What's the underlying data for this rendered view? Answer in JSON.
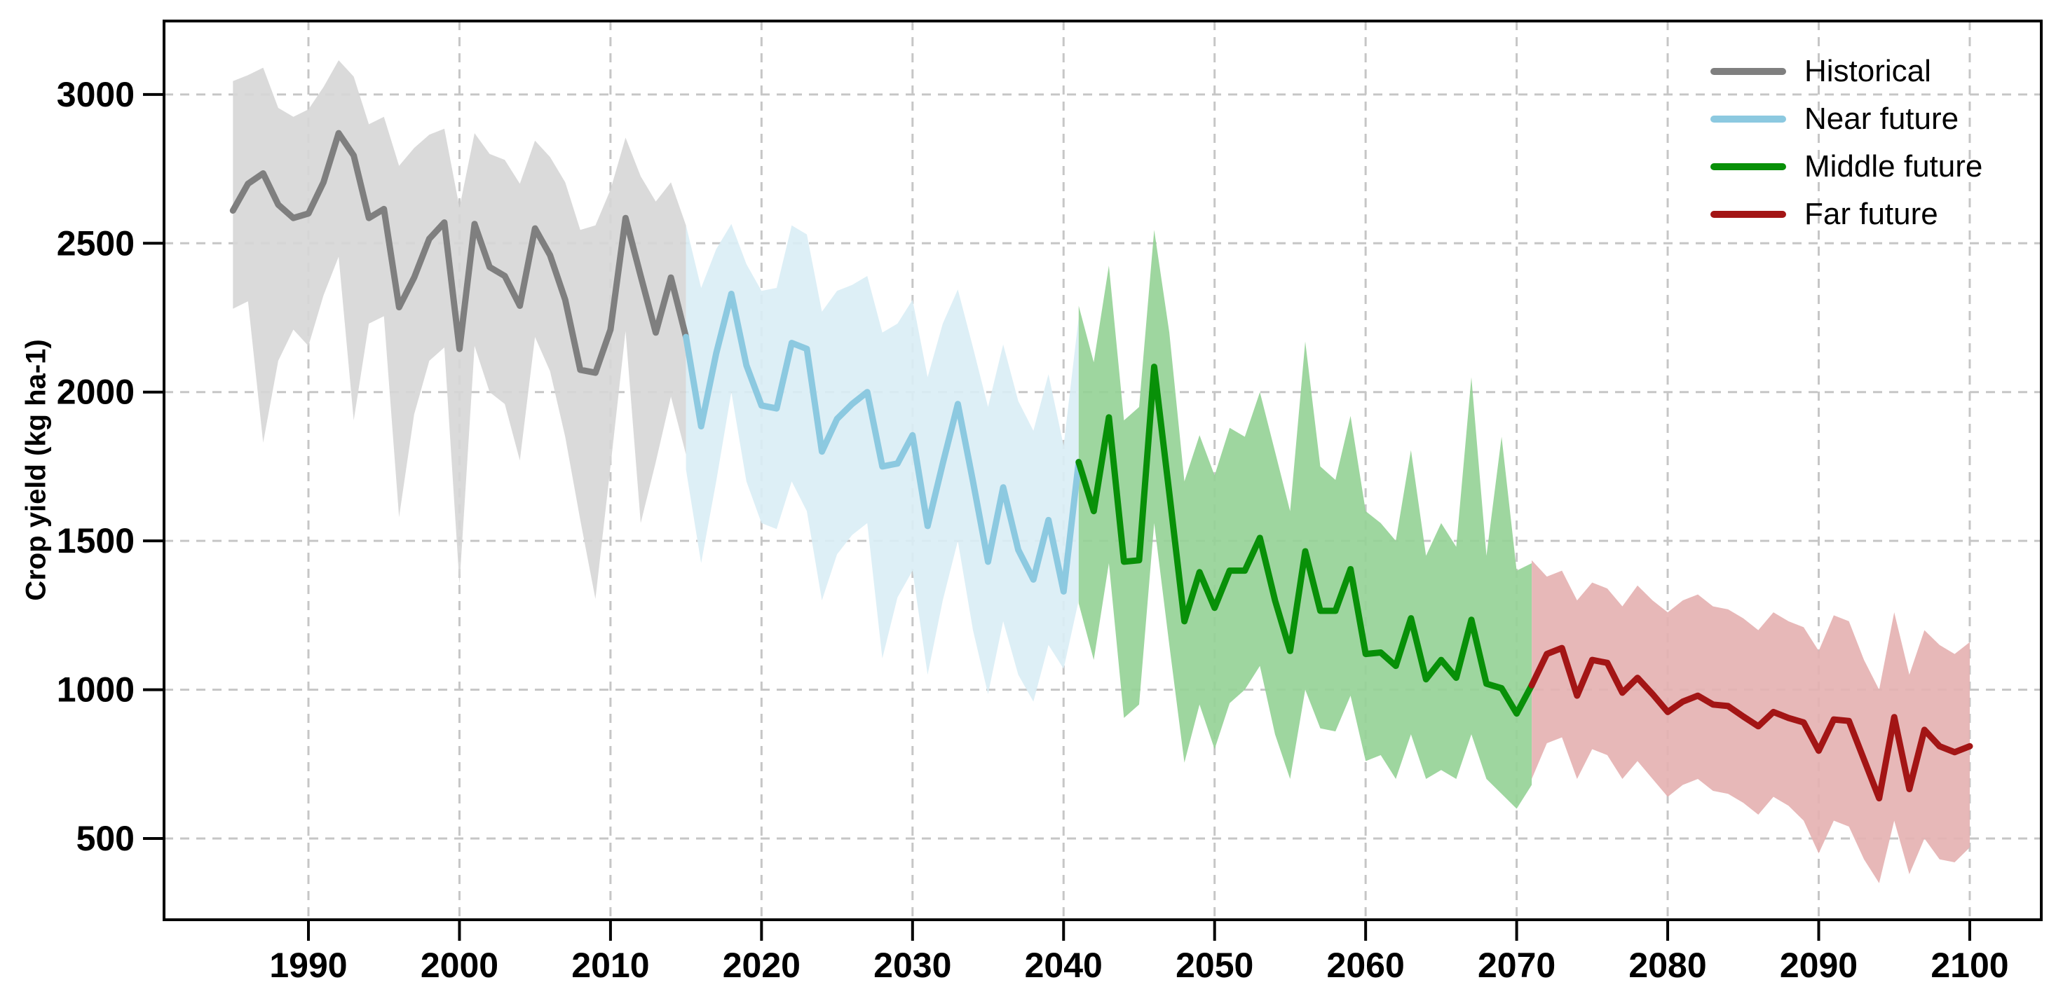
{
  "chart_data": {
    "type": "line",
    "title": "",
    "xlabel": "",
    "ylabel": "Crop yield (kg ha-1)",
    "x_ticks": [
      1990,
      2000,
      2010,
      2020,
      2030,
      2040,
      2050,
      2060,
      2070,
      2080,
      2090,
      2100
    ],
    "y_ticks": [
      500,
      1000,
      1500,
      2000,
      2500,
      3000
    ],
    "xlim": [
      1980.4,
      2104.7
    ],
    "ylim": [
      230,
      3250
    ],
    "grid": true,
    "grid_style": "dashed",
    "legend_position": "top-right",
    "frame_color": "#000000",
    "grid_color": "#c6c6c6",
    "series": [
      {
        "name": "Historical",
        "color": "#7f7f7f",
        "band_color": "#d6d6d6",
        "years": [
          1985,
          1986,
          1987,
          1988,
          1989,
          1990,
          1991,
          1992,
          1993,
          1994,
          1995,
          1996,
          1997,
          1998,
          1999,
          2000,
          2001,
          2002,
          2003,
          2004,
          2005,
          2006,
          2007,
          2008,
          2009,
          2010,
          2011,
          2012,
          2013,
          2014,
          2015
        ],
        "values": [
          2610,
          2700,
          2735,
          2630,
          2585,
          2600,
          2705,
          2870,
          2795,
          2585,
          2615,
          2285,
          2385,
          2515,
          2570,
          2145,
          2565,
          2420,
          2390,
          2290,
          2550,
          2460,
          2310,
          2075,
          2065,
          2210,
          2585,
          2390,
          2200,
          2385,
          2185
        ],
        "upper": [
          3045,
          3065,
          3090,
          2955,
          2925,
          2950,
          3025,
          3115,
          3060,
          2900,
          2925,
          2760,
          2820,
          2865,
          2885,
          2620,
          2870,
          2800,
          2780,
          2700,
          2845,
          2790,
          2705,
          2545,
          2560,
          2680,
          2855,
          2725,
          2640,
          2705,
          2560
        ],
        "lower": [
          2280,
          2305,
          1830,
          2105,
          2210,
          2155,
          2325,
          2455,
          1905,
          2230,
          2255,
          1580,
          1925,
          2105,
          2150,
          1355,
          2155,
          2000,
          1960,
          1770,
          2185,
          2070,
          1850,
          1570,
          1305,
          1750,
          2205,
          1560,
          1765,
          1985,
          1790
        ]
      },
      {
        "name": "Near future",
        "color": "#8cc9e0",
        "band_color": "#d9edf5",
        "years": [
          2015,
          2016,
          2017,
          2018,
          2019,
          2020,
          2021,
          2022,
          2023,
          2024,
          2025,
          2026,
          2027,
          2028,
          2029,
          2030,
          2031,
          2032,
          2033,
          2034,
          2035,
          2036,
          2037,
          2038,
          2039,
          2040,
          2041
        ],
        "values": [
          2185,
          1885,
          2130,
          2330,
          2090,
          1955,
          1945,
          2165,
          2145,
          1800,
          1910,
          1960,
          2000,
          1750,
          1760,
          1855,
          1550,
          1760,
          1960,
          1700,
          1430,
          1680,
          1470,
          1370,
          1570,
          1330,
          1765
        ],
        "upper": [
          2560,
          2350,
          2480,
          2565,
          2430,
          2340,
          2350,
          2560,
          2530,
          2270,
          2340,
          2360,
          2390,
          2200,
          2230,
          2310,
          2050,
          2230,
          2345,
          2150,
          1950,
          2160,
          1970,
          1870,
          2060,
          1820,
          2250
        ],
        "lower": [
          1740,
          1425,
          1700,
          2000,
          1700,
          1560,
          1540,
          1700,
          1600,
          1300,
          1455,
          1520,
          1560,
          1105,
          1310,
          1400,
          1050,
          1300,
          1500,
          1200,
          985,
          1230,
          1050,
          960,
          1150,
          1070,
          1300
        ]
      },
      {
        "name": "Middle future",
        "color": "#089008",
        "band_color": "#93d195",
        "years": [
          2041,
          2042,
          2043,
          2044,
          2045,
          2046,
          2047,
          2048,
          2049,
          2050,
          2051,
          2052,
          2053,
          2054,
          2055,
          2056,
          2057,
          2058,
          2059,
          2060,
          2061,
          2062,
          2063,
          2064,
          2065,
          2066,
          2067,
          2068,
          2069,
          2070,
          2071
        ],
        "values": [
          1765,
          1600,
          1915,
          1430,
          1435,
          2085,
          1660,
          1230,
          1395,
          1275,
          1400,
          1400,
          1510,
          1300,
          1130,
          1465,
          1265,
          1265,
          1405,
          1120,
          1125,
          1080,
          1240,
          1035,
          1100,
          1040,
          1235,
          1020,
          1005,
          920,
          1015
        ],
        "upper": [
          2290,
          2100,
          2425,
          1905,
          1950,
          2545,
          2200,
          1700,
          1855,
          1720,
          1880,
          1850,
          2000,
          1800,
          1600,
          2170,
          1750,
          1705,
          1920,
          1600,
          1560,
          1500,
          1805,
          1450,
          1560,
          1480,
          2050,
          1450,
          1850,
          1400,
          1425
        ],
        "lower": [
          1290,
          1100,
          1425,
          905,
          950,
          1560,
          1150,
          755,
          950,
          800,
          955,
          1000,
          1080,
          850,
          700,
          1000,
          870,
          860,
          980,
          760,
          780,
          700,
          850,
          700,
          730,
          700,
          850,
          700,
          650,
          600,
          680
        ]
      },
      {
        "name": "Far future",
        "color": "#a31515",
        "band_color": "#e4b0b0",
        "years": [
          2071,
          2072,
          2073,
          2074,
          2075,
          2076,
          2077,
          2078,
          2079,
          2080,
          2081,
          2082,
          2083,
          2084,
          2085,
          2086,
          2087,
          2088,
          2089,
          2090,
          2091,
          2092,
          2093,
          2094,
          2095,
          2096,
          2097,
          2098,
          2099,
          2100
        ],
        "values": [
          1015,
          1120,
          1140,
          980,
          1100,
          1090,
          990,
          1040,
          985,
          925,
          960,
          980,
          950,
          945,
          910,
          877,
          925,
          905,
          890,
          795,
          900,
          895,
          765,
          635,
          908,
          666,
          865,
          810,
          790,
          810
        ],
        "upper": [
          1435,
          1380,
          1400,
          1300,
          1360,
          1340,
          1280,
          1350,
          1300,
          1260,
          1300,
          1320,
          1280,
          1270,
          1240,
          1200,
          1260,
          1230,
          1210,
          1130,
          1250,
          1230,
          1100,
          1000,
          1260,
          1050,
          1200,
          1150,
          1120,
          1160
        ],
        "lower": [
          700,
          820,
          840,
          700,
          800,
          780,
          700,
          760,
          700,
          640,
          680,
          700,
          660,
          650,
          620,
          580,
          640,
          610,
          560,
          450,
          560,
          540,
          430,
          350,
          560,
          380,
          500,
          430,
          420,
          470
        ]
      }
    ]
  },
  "legend": {
    "items": [
      {
        "label": "Historical"
      },
      {
        "label": "Near future"
      },
      {
        "label": "Middle future"
      },
      {
        "label": "Far future"
      }
    ]
  }
}
